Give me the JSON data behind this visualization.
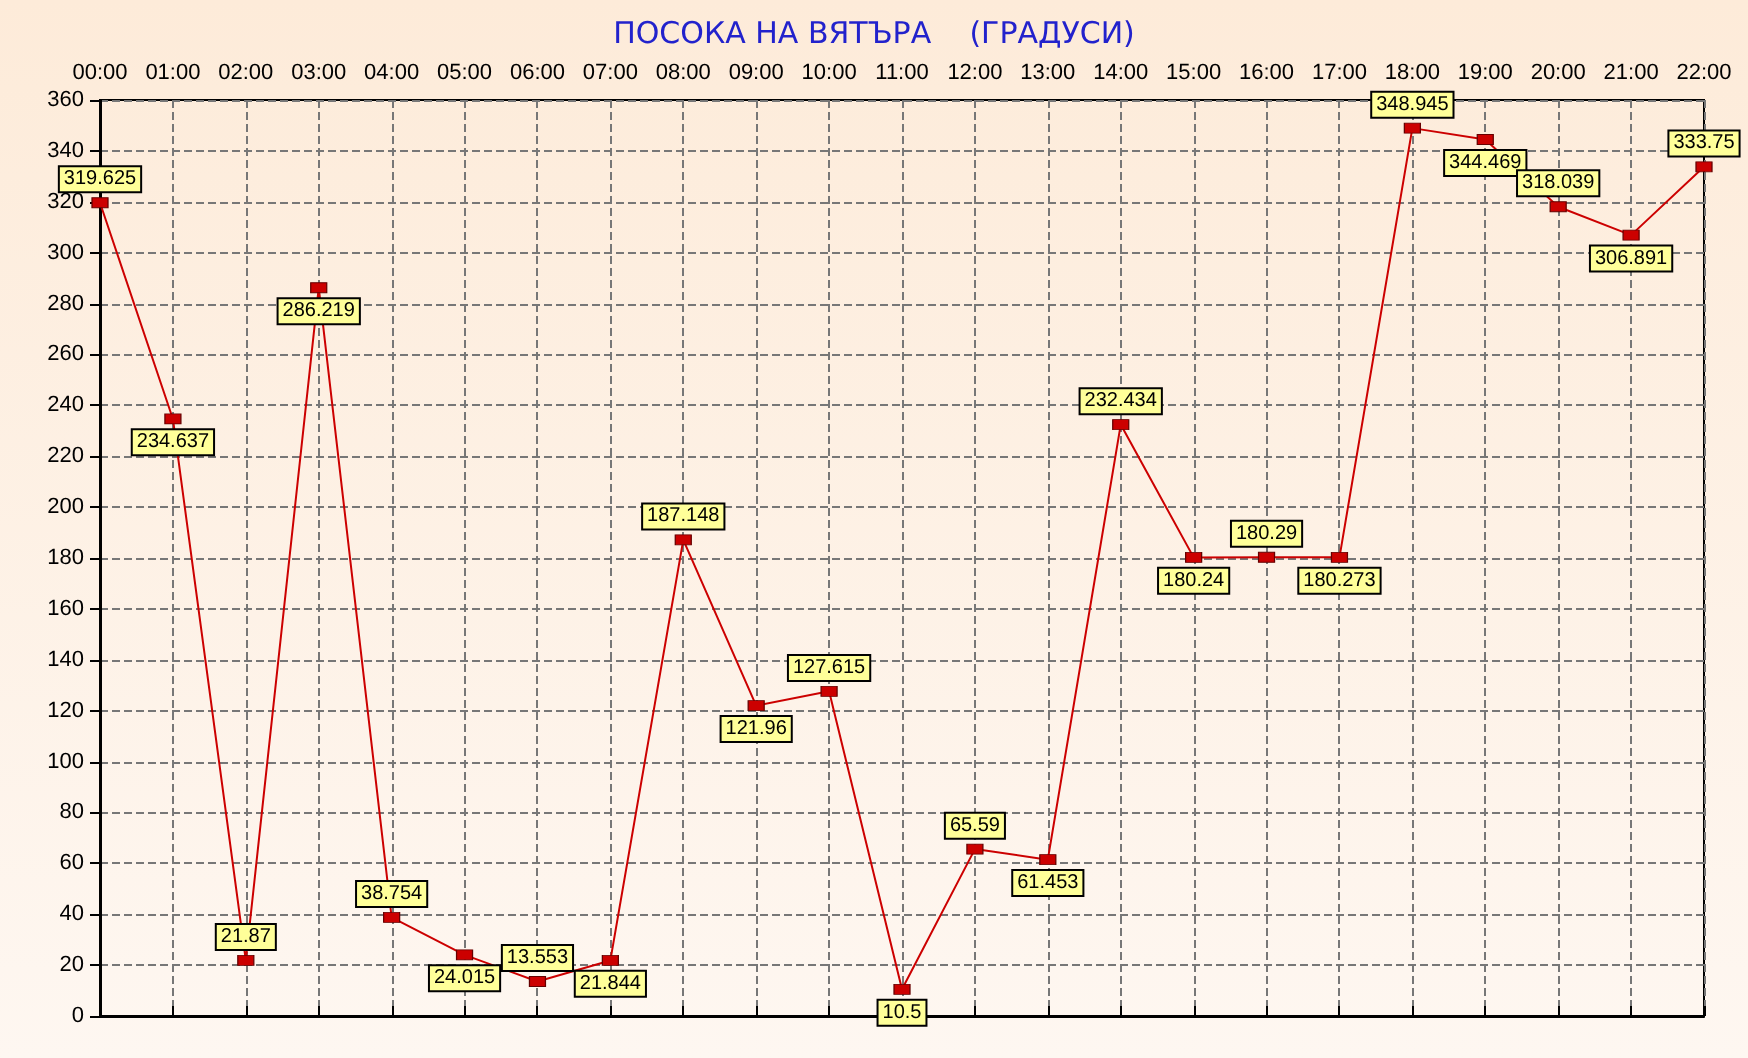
{
  "chart_data": {
    "type": "line",
    "title": "ПОСОКА НА ВЯТЪРА    (ГРАДУСИ)",
    "categories": [
      "00:00",
      "01:00",
      "02:00",
      "03:00",
      "04:00",
      "05:00",
      "06:00",
      "07:00",
      "08:00",
      "09:00",
      "10:00",
      "11:00",
      "12:00",
      "13:00",
      "14:00",
      "15:00",
      "16:00",
      "17:00",
      "18:00",
      "19:00",
      "20:00",
      "21:00",
      "22:00"
    ],
    "series": [
      {
        "color": "#cc0000",
        "values": [
          319.625,
          234.637,
          21.87,
          286.219,
          38.754,
          24.015,
          13.553,
          21.844,
          187.148,
          121.96,
          127.615,
          10.5,
          65.59,
          61.453,
          232.434,
          180.24,
          180.29,
          180.273,
          348.945,
          344.469,
          318.039,
          306.891,
          333.75
        ]
      }
    ],
    "ylim": [
      0,
      360
    ],
    "yticks": [
      0,
      20,
      40,
      60,
      80,
      100,
      120,
      140,
      160,
      180,
      200,
      220,
      240,
      260,
      280,
      300,
      320,
      340,
      360
    ],
    "grid": true,
    "marker": "square",
    "line_style": "solid",
    "data_labels": true
  }
}
